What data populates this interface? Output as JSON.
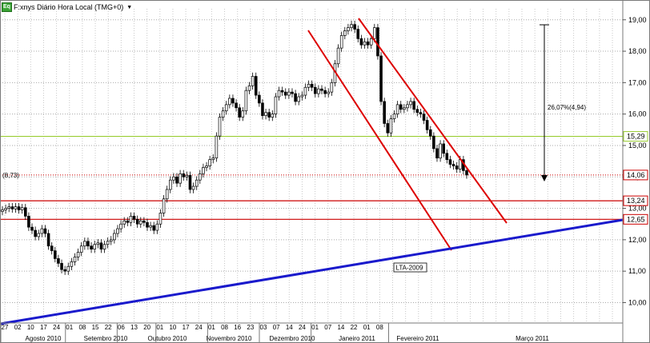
{
  "header": {
    "badge": "Eq",
    "title": "F:xnys Diário Hora Local (TMG+0)",
    "caret": "▼"
  },
  "chart_data": {
    "type": "candlestick",
    "y_ticks": [
      "10,00",
      "11,00",
      "12,00",
      "13,00",
      "14,00",
      "15,00",
      "16,00",
      "17,00",
      "18,00",
      "19,00"
    ],
    "ylim": [
      9.35,
      19.35
    ],
    "day_labels": [
      "27",
      "02",
      "10",
      "17",
      "24",
      "01",
      "08",
      "15",
      "22",
      "06",
      "13",
      "20",
      "01",
      "10",
      "17",
      "24",
      "01",
      "08",
      "16",
      "23",
      "03",
      "07",
      "14",
      "24",
      "01",
      "07",
      "14",
      "22",
      "01",
      "08"
    ],
    "month_labels": [
      "Agosto 2010",
      "Setembro 2010",
      "Outubro 2010",
      "Novembro 2010",
      "Dezembro 2010",
      "Janeiro 2011",
      "Fevereiro 2011",
      "Março 2011"
    ],
    "price_badges": [
      {
        "text": "15,29",
        "value": 15.29,
        "color": "#9acd32"
      },
      {
        "text": "14,06",
        "value": 14.06,
        "color": "#cc0000"
      },
      {
        "text": "13,24",
        "value": 13.24,
        "color": "#cc0000"
      },
      {
        "text": "12,65",
        "value": 12.65,
        "color": "#cc0000"
      }
    ],
    "left_note": "(8,73)",
    "measure_text": "26,07%(4,94)",
    "trend_label": "LTA-2009",
    "closes": [
      12.95,
      13.0,
      13.05,
      12.98,
      13.05,
      12.95,
      13.02,
      12.75,
      12.4,
      12.3,
      12.1,
      12.2,
      12.35,
      12.2,
      11.8,
      11.65,
      11.4,
      11.25,
      11.05,
      11.0,
      11.15,
      11.3,
      11.45,
      11.6,
      11.8,
      11.95,
      11.8,
      11.7,
      11.85,
      11.9,
      11.7,
      11.85,
      11.95,
      12.0,
      12.2,
      12.35,
      12.5,
      12.6,
      12.55,
      12.75,
      12.65,
      12.5,
      12.6,
      12.55,
      12.4,
      12.45,
      12.3,
      12.5,
      12.85,
      13.3,
      13.6,
      13.9,
      14.0,
      13.8,
      14.1,
      14.0,
      14.05,
      13.6,
      13.7,
      13.9,
      14.1,
      14.3,
      14.35,
      14.55,
      14.6,
      15.3,
      15.9,
      16.1,
      16.3,
      16.5,
      16.35,
      16.2,
      15.9,
      16.1,
      16.75,
      16.9,
      17.2,
      16.6,
      16.35,
      15.95,
      16.05,
      15.9,
      16.0,
      16.55,
      16.75,
      16.7,
      16.6,
      16.7,
      16.65,
      16.4,
      16.55,
      16.6,
      16.85,
      16.95,
      16.85,
      16.65,
      16.8,
      16.75,
      16.65,
      16.7,
      17.0,
      17.6,
      18.1,
      18.5,
      18.65,
      18.75,
      18.85,
      18.7,
      18.4,
      18.2,
      18.3,
      18.2,
      18.4,
      18.75,
      17.85,
      16.4,
      15.7,
      15.4,
      15.85,
      16.0,
      16.3,
      16.15,
      16.2,
      16.3,
      16.4,
      16.15,
      16.05,
      16.0,
      15.8,
      15.5,
      15.3,
      14.9,
      14.6,
      15.05,
      14.75,
      14.55,
      14.4,
      14.35,
      14.25,
      14.55,
      14.2,
      14.06
    ]
  }
}
